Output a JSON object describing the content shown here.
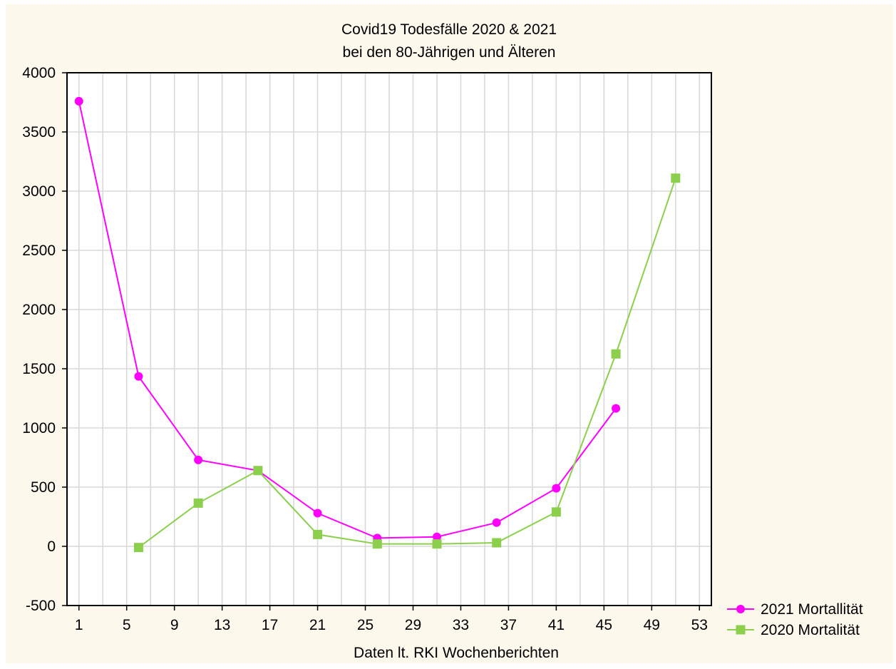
{
  "chart_data": {
    "type": "line",
    "title": "Covid19 Todesfälle 2020 & 2021",
    "subtitle": "bei den 80-Jährigen und Älteren",
    "xlabel": "Daten lt. RKI Wochenberichten",
    "ylabel": "",
    "xlim": [
      0,
      54
    ],
    "ylim": [
      -500,
      4000
    ],
    "xticks": [
      1,
      5,
      9,
      13,
      17,
      21,
      25,
      29,
      33,
      37,
      41,
      45,
      49,
      53
    ],
    "yticks": [
      -500,
      0,
      500,
      1000,
      1500,
      2000,
      2500,
      3000,
      3500,
      4000
    ],
    "grid": true,
    "legend_position": "bottom-right outside",
    "series": [
      {
        "name": "2021 Mortallität",
        "color": "#ff00ff",
        "marker": "circle",
        "x": [
          1,
          6,
          11,
          16,
          21,
          26,
          31,
          36,
          41,
          46
        ],
        "y": [
          3760,
          1435,
          730,
          640,
          280,
          70,
          80,
          200,
          490,
          1165
        ]
      },
      {
        "name": "2020 Mortalität",
        "color": "#8ccf4d",
        "marker": "square",
        "x": [
          6,
          11,
          16,
          21,
          26,
          31,
          36,
          41,
          46,
          51
        ],
        "y": [
          -10,
          365,
          640,
          100,
          20,
          20,
          30,
          290,
          1625,
          3110
        ]
      }
    ]
  }
}
